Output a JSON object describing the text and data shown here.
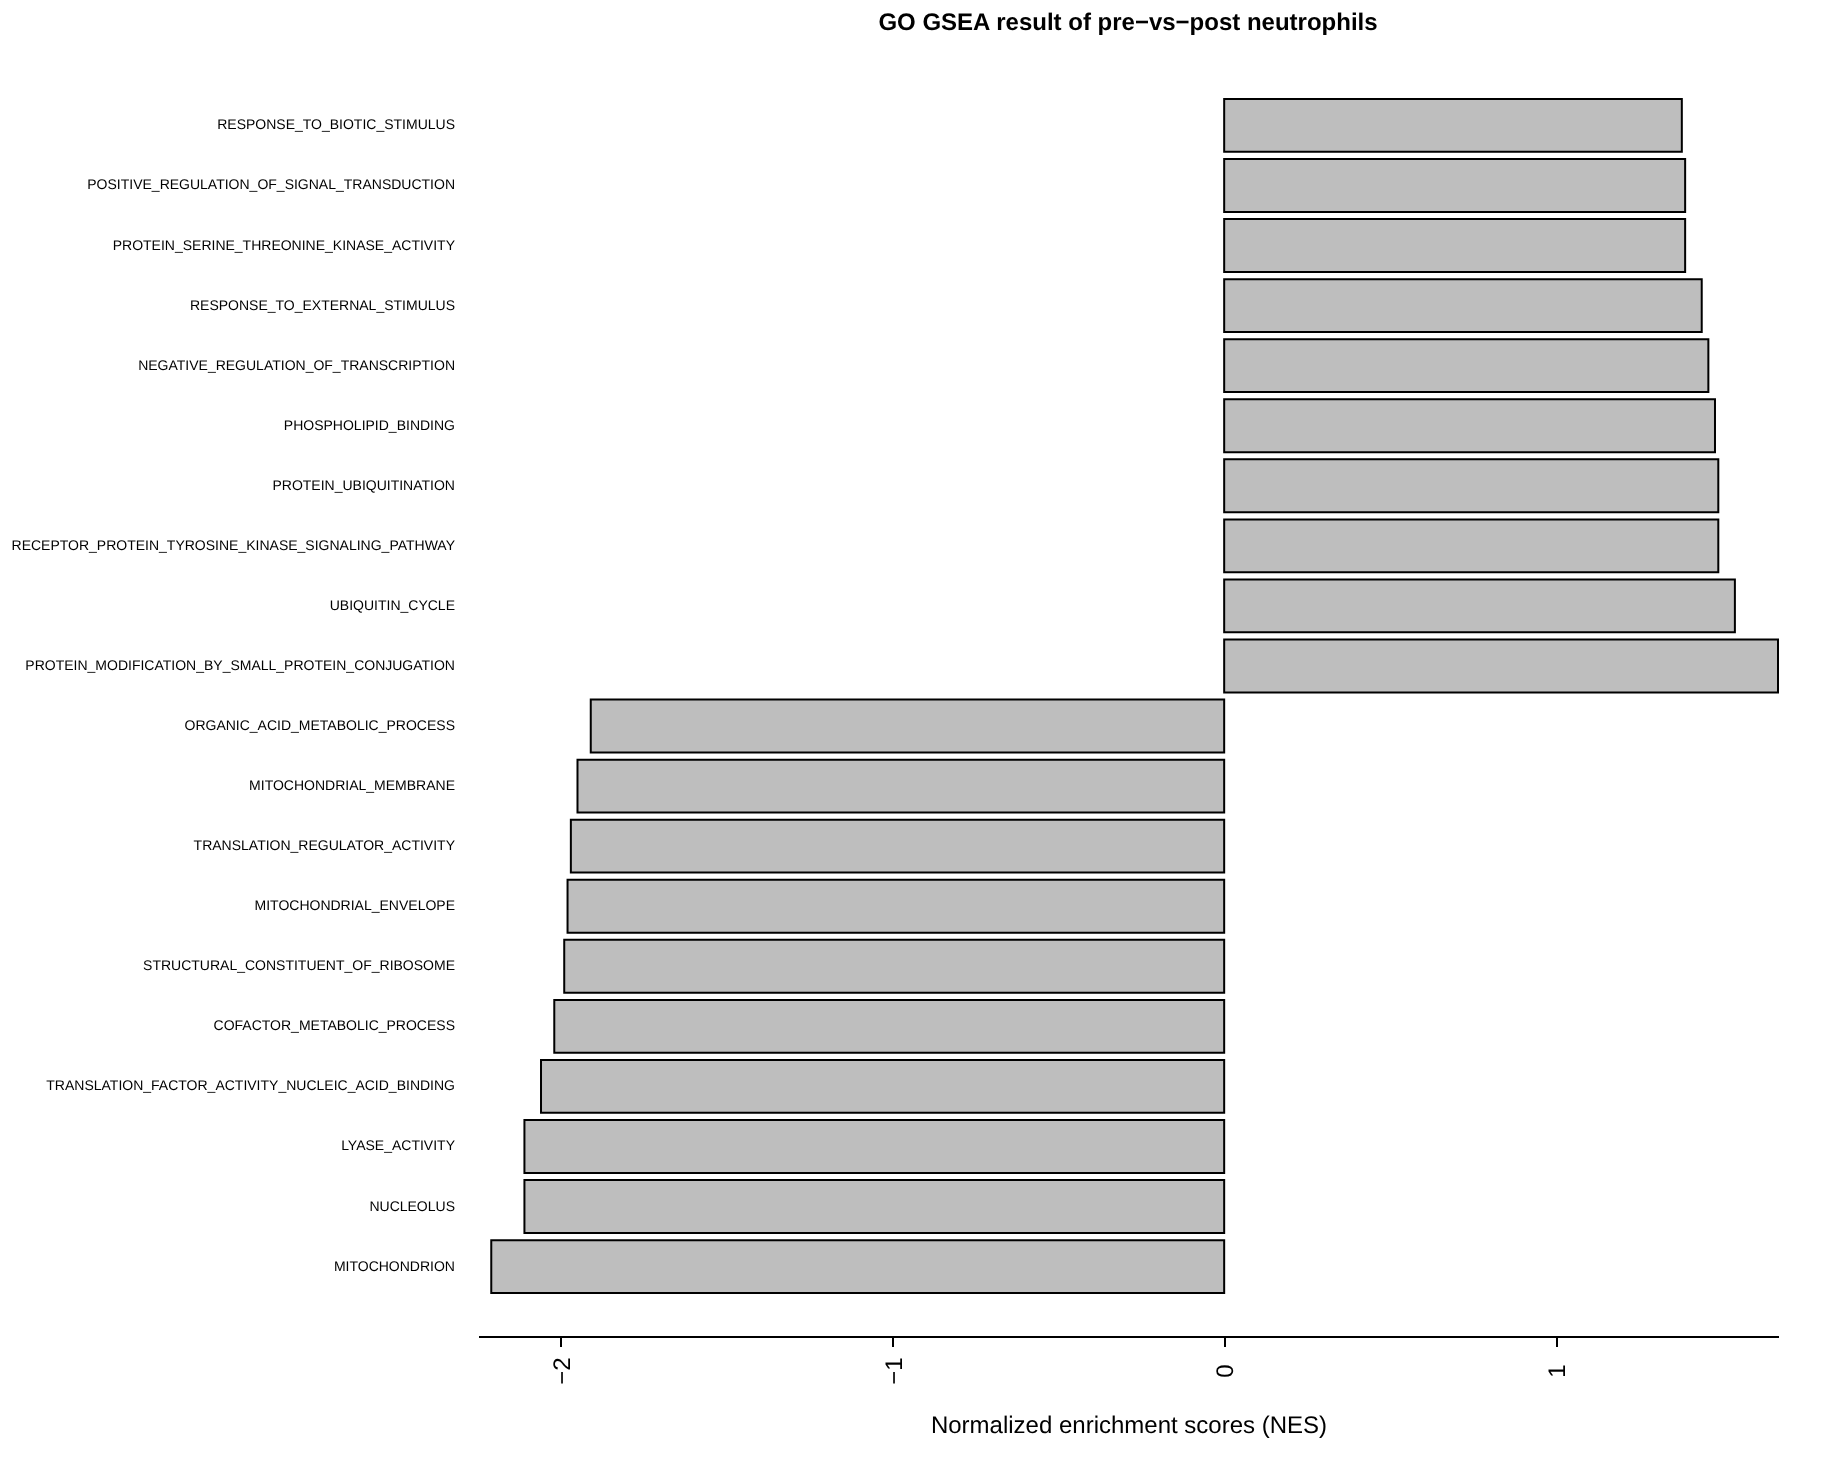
{
  "chart_data": {
    "type": "bar",
    "orientation": "horizontal",
    "title": "GO GSEA result of pre−vs−post neutrophils",
    "xlabel": "Normalized enrichment scores (NES)",
    "categories": [
      "RESPONSE_TO_BIOTIC_STIMULUS",
      "POSITIVE_REGULATION_OF_SIGNAL_TRANSDUCTION",
      "PROTEIN_SERINE_THREONINE_KINASE_ACTIVITY",
      "RESPONSE_TO_EXTERNAL_STIMULUS",
      "NEGATIVE_REGULATION_OF_TRANSCRIPTION",
      "PHOSPHOLIPID_BINDING",
      "PROTEIN_UBIQUITINATION",
      "RECEPTOR_PROTEIN_TYROSINE_KINASE_SIGNALING_PATHWAY",
      "UBIQUITIN_CYCLE",
      "PROTEIN_MODIFICATION_BY_SMALL_PROTEIN_CONJUGATION",
      "ORGANIC_ACID_METABOLIC_PROCESS",
      "MITOCHONDRIAL_MEMBRANE",
      "TRANSLATION_REGULATOR_ACTIVITY",
      "MITOCHONDRIAL_ENVELOPE",
      "STRUCTURAL_CONSTITUENT_OF_RIBOSOME",
      "COFACTOR_METABOLIC_PROCESS",
      "TRANSLATION_FACTOR_ACTIVITY_NUCLEIC_ACID_BINDING",
      "LYASE_ACTIVITY",
      "NUCLEOLUS",
      "MITOCHONDRION"
    ],
    "values": [
      1.38,
      1.39,
      1.39,
      1.44,
      1.46,
      1.48,
      1.49,
      1.49,
      1.54,
      1.67,
      -1.91,
      -1.95,
      -1.97,
      -1.98,
      -1.99,
      -2.02,
      -2.06,
      -2.11,
      -2.11,
      -2.21
    ],
    "color": "#bebebe",
    "xlim": [
      -2.25,
      1.67
    ],
    "xticks": [
      -2,
      -1,
      0,
      1
    ],
    "grid": false
  }
}
